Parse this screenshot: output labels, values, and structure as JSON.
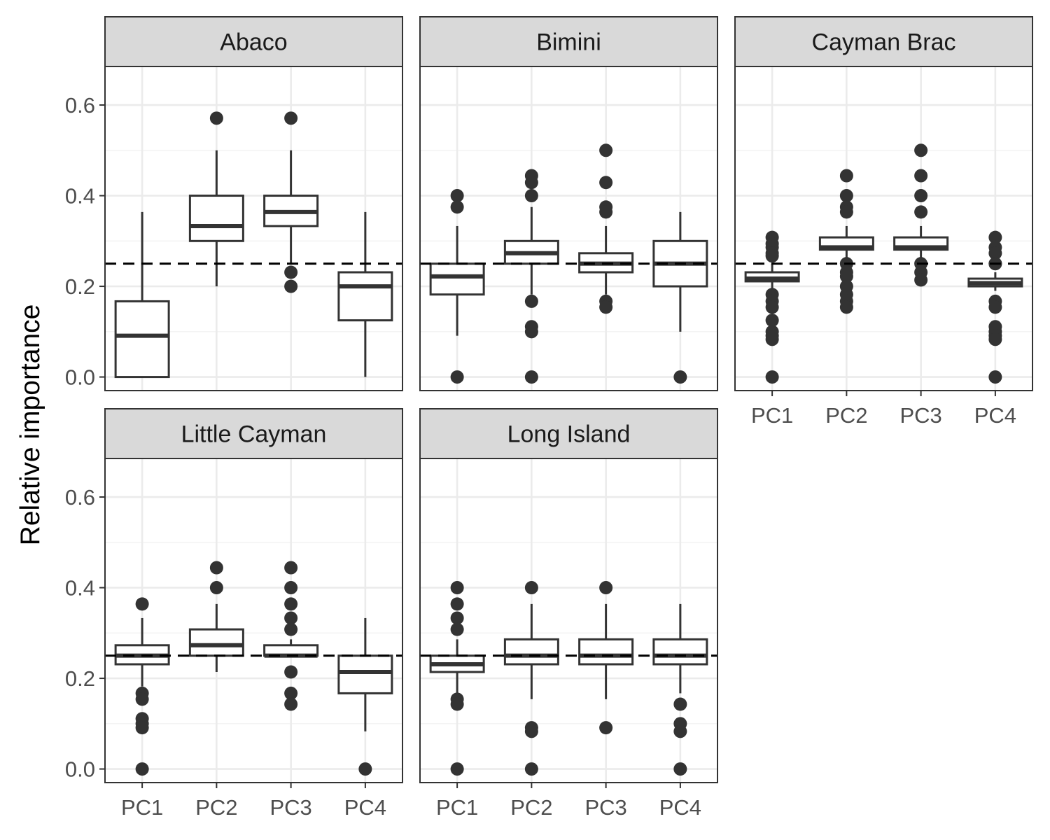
{
  "chart_data": {
    "type": "boxplot",
    "ylabel": "Relative importance",
    "xlabel": "",
    "ylim": [
      -0.03,
      0.685
    ],
    "yticks": [
      0.0,
      0.2,
      0.4,
      0.6
    ],
    "ytick_labels": [
      "0.0",
      "0.2",
      "0.4",
      "0.6"
    ],
    "categories": [
      "PC1",
      "PC2",
      "PC3",
      "PC4"
    ],
    "reference_line": 0.25,
    "grid": true,
    "panels": [
      {
        "title": "Abaco",
        "boxes": [
          {
            "category": "PC1",
            "q1": 0.0,
            "median": 0.091,
            "q3": 0.167,
            "whisker_low": 0.0,
            "whisker_high": 0.364,
            "outliers": []
          },
          {
            "category": "PC2",
            "q1": 0.3,
            "median": 0.333,
            "q3": 0.4,
            "whisker_low": 0.2,
            "whisker_high": 0.5,
            "outliers": [
              0.571
            ]
          },
          {
            "category": "PC3",
            "q1": 0.333,
            "median": 0.364,
            "q3": 0.4,
            "whisker_low": 0.25,
            "whisker_high": 0.5,
            "outliers": [
              0.571,
              0.231,
              0.2
            ]
          },
          {
            "category": "PC4",
            "q1": 0.125,
            "median": 0.2,
            "q3": 0.231,
            "whisker_low": 0.0,
            "whisker_high": 0.364,
            "outliers": []
          }
        ]
      },
      {
        "title": "Bimini",
        "boxes": [
          {
            "category": "PC1",
            "q1": 0.182,
            "median": 0.222,
            "q3": 0.25,
            "whisker_low": 0.091,
            "whisker_high": 0.333,
            "outliers": [
              0.4,
              0.375,
              0.0
            ]
          },
          {
            "category": "PC2",
            "q1": 0.25,
            "median": 0.273,
            "q3": 0.3,
            "whisker_low": 0.182,
            "whisker_high": 0.375,
            "outliers": [
              0.444,
              0.429,
              0.4,
              0.167,
              0.111,
              0.1,
              0.0
            ]
          },
          {
            "category": "PC3",
            "q1": 0.231,
            "median": 0.25,
            "q3": 0.273,
            "whisker_low": 0.182,
            "whisker_high": 0.333,
            "outliers": [
              0.5,
              0.429,
              0.375,
              0.364,
              0.167,
              0.154
            ]
          },
          {
            "category": "PC4",
            "q1": 0.2,
            "median": 0.25,
            "q3": 0.3,
            "whisker_low": 0.1,
            "whisker_high": 0.364,
            "outliers": [
              0.0
            ]
          }
        ]
      },
      {
        "title": "Cayman Brac",
        "boxes": [
          {
            "category": "PC1",
            "q1": 0.211,
            "median": 0.217,
            "q3": 0.231,
            "whisker_low": 0.19,
            "whisker_high": 0.25,
            "outliers": [
              0.308,
              0.294,
              0.286,
              0.273,
              0.267,
              0.182,
              0.167,
              0.154,
              0.125,
              0.1,
              0.091,
              0.083,
              0.0
            ]
          },
          {
            "category": "PC2",
            "q1": 0.281,
            "median": 0.286,
            "q3": 0.308,
            "whisker_low": 0.261,
            "whisker_high": 0.333,
            "outliers": [
              0.444,
              0.4,
              0.375,
              0.364,
              0.25,
              0.231,
              0.222,
              0.2,
              0.182,
              0.167,
              0.154
            ]
          },
          {
            "category": "PC3",
            "q1": 0.281,
            "median": 0.286,
            "q3": 0.308,
            "whisker_low": 0.261,
            "whisker_high": 0.333,
            "outliers": [
              0.5,
              0.444,
              0.4,
              0.364,
              0.25,
              0.231,
              0.214
            ]
          },
          {
            "category": "PC4",
            "q1": 0.2,
            "median": 0.207,
            "q3": 0.217,
            "whisker_low": 0.19,
            "whisker_high": 0.231,
            "outliers": [
              0.308,
              0.286,
              0.273,
              0.25,
              0.25,
              0.167,
              0.154,
              0.111,
              0.1,
              0.091,
              0.083,
              0.0
            ]
          }
        ]
      },
      {
        "title": "Little Cayman",
        "boxes": [
          {
            "category": "PC1",
            "q1": 0.231,
            "median": 0.25,
            "q3": 0.273,
            "whisker_low": 0.182,
            "whisker_high": 0.333,
            "outliers": [
              0.364,
              0.167,
              0.154,
              0.111,
              0.1,
              0.091,
              0.0
            ]
          },
          {
            "category": "PC2",
            "q1": 0.25,
            "median": 0.273,
            "q3": 0.308,
            "whisker_low": 0.214,
            "whisker_high": 0.364,
            "outliers": [
              0.444,
              0.4
            ]
          },
          {
            "category": "PC3",
            "q1": 0.25,
            "median": 0.25,
            "q3": 0.273,
            "whisker_low": 0.25,
            "whisker_high": 0.286,
            "outliers": [
              0.444,
              0.4,
              0.364,
              0.333,
              0.308,
              0.214,
              0.167,
              0.143
            ]
          },
          {
            "category": "PC4",
            "q1": 0.167,
            "median": 0.214,
            "q3": 0.25,
            "whisker_low": 0.083,
            "whisker_high": 0.333,
            "outliers": [
              0.0
            ]
          }
        ]
      },
      {
        "title": "Long Island",
        "boxes": [
          {
            "category": "PC1",
            "q1": 0.214,
            "median": 0.231,
            "q3": 0.25,
            "whisker_low": 0.167,
            "whisker_high": 0.286,
            "outliers": [
              0.4,
              0.364,
              0.333,
              0.308,
              0.154,
              0.143,
              0.0
            ]
          },
          {
            "category": "PC2",
            "q1": 0.231,
            "median": 0.25,
            "q3": 0.286,
            "whisker_low": 0.154,
            "whisker_high": 0.364,
            "outliers": [
              0.4,
              0.091,
              0.083,
              0.0
            ]
          },
          {
            "category": "PC3",
            "q1": 0.231,
            "median": 0.25,
            "q3": 0.286,
            "whisker_low": 0.154,
            "whisker_high": 0.364,
            "outliers": [
              0.4,
              0.091
            ]
          },
          {
            "category": "PC4",
            "q1": 0.231,
            "median": 0.25,
            "q3": 0.286,
            "whisker_low": 0.167,
            "whisker_high": 0.364,
            "outliers": [
              0.143,
              0.1,
              0.083,
              0.0
            ]
          }
        ]
      }
    ]
  }
}
